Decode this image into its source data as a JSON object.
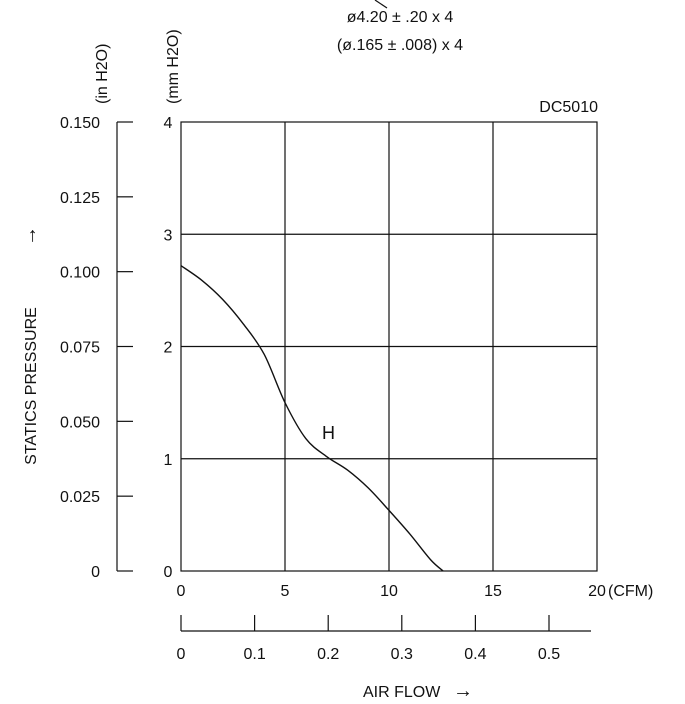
{
  "header": {
    "dimension_line_1": "ø4.20 ± .20 x 4",
    "dimension_line_2": "(ø.165 ± .008) x 4"
  },
  "chart_data": {
    "type": "line",
    "model_label": "DC5010",
    "ylabel": "STATICS PRESSURE",
    "ylabel_arrow": "→",
    "xlabel": "AIR FLOW",
    "xlabel_arrow": "→",
    "y_mm_unit": "(mm H2O)",
    "y_in_unit": "(in H2O)",
    "x_cfm_unit": "(CFM)",
    "xlim": [
      0,
      20
    ],
    "ylim": [
      0,
      4
    ],
    "grid": true,
    "x_ticks": [
      "0",
      "5",
      "10",
      "15",
      "20"
    ],
    "y_mm_ticks": [
      "0",
      "1",
      "2",
      "3",
      "4"
    ],
    "y_in_ticks": [
      "0",
      "0.025",
      "0.050",
      "0.075",
      "0.100",
      "0.125",
      "0.150"
    ],
    "x_secondary_ticks": [
      "0",
      "0.1",
      "0.2",
      "0.3",
      "0.4",
      "0.5"
    ],
    "series": [
      {
        "name": "H",
        "x": [
          0,
          1,
          2,
          3,
          4,
          5,
          6,
          7,
          8,
          9,
          10,
          11,
          12,
          12.6
        ],
        "y": [
          2.72,
          2.59,
          2.42,
          2.2,
          1.93,
          1.5,
          1.18,
          1.02,
          0.9,
          0.74,
          0.54,
          0.33,
          0.1,
          0
        ]
      }
    ]
  }
}
